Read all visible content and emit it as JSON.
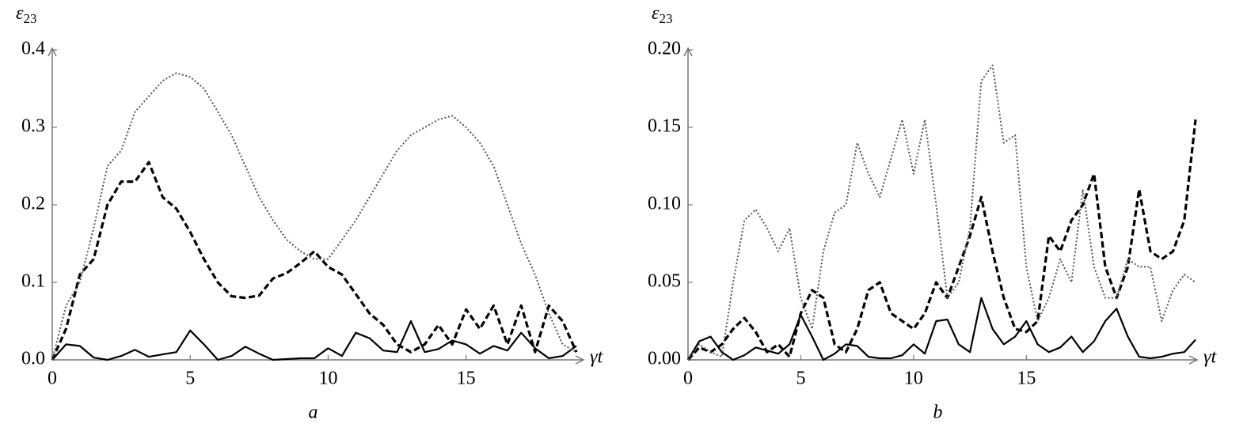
{
  "chart_data": [
    {
      "type": "line",
      "caption": "a",
      "ylabel": "ε",
      "ylabel_subscript": "23",
      "xlabel": "γt",
      "xlim": [
        0,
        19.2
      ],
      "ylim": [
        0,
        0.4
      ],
      "xticks": [
        0,
        5,
        10,
        15
      ],
      "yticks": [
        {
          "value": 0,
          "label": "0.0"
        },
        0.1,
        0.2,
        0.3,
        0.4
      ],
      "x": [
        0,
        0.5,
        1,
        1.5,
        2,
        2.5,
        3,
        3.5,
        4,
        4.5,
        5,
        5.5,
        6,
        6.5,
        7,
        7.5,
        8,
        8.5,
        9,
        9.5,
        10,
        10.5,
        11,
        11.5,
        12,
        12.5,
        13,
        13.5,
        14,
        14.5,
        15,
        15.5,
        16,
        16.5,
        17,
        17.5,
        18,
        18.5,
        19
      ],
      "series": [
        {
          "color": "#000000",
          "dash": "solid",
          "values": [
            0,
            0.02,
            0.018,
            0.003,
            0,
            0.005,
            0.013,
            0.004,
            0.007,
            0.01,
            0.038,
            0.02,
            0,
            0.005,
            0.017,
            0.008,
            0,
            0.001,
            0.002,
            0.002,
            0.015,
            0.005,
            0.035,
            0.028,
            0.012,
            0.01,
            0.05,
            0.01,
            0.014,
            0.025,
            0.02,
            0.008,
            0.018,
            0.012,
            0.035,
            0.015,
            0.002,
            0.005,
            0.018
          ]
        },
        {
          "color": "#000000",
          "dash": "dashed",
          "values": [
            0,
            0.04,
            0.11,
            0.13,
            0.2,
            0.23,
            0.23,
            0.255,
            0.21,
            0.195,
            0.165,
            0.13,
            0.1,
            0.082,
            0.08,
            0.083,
            0.105,
            0.112,
            0.125,
            0.14,
            0.12,
            0.11,
            0.085,
            0.06,
            0.045,
            0.02,
            0.01,
            0.02,
            0.045,
            0.02,
            0.065,
            0.04,
            0.07,
            0.02,
            0.07,
            0.01,
            0.07,
            0.05,
            0.01
          ]
        },
        {
          "color": "#555555",
          "dash": "dotted",
          "values": [
            0,
            0.07,
            0.1,
            0.17,
            0.25,
            0.27,
            0.32,
            0.34,
            0.36,
            0.37,
            0.365,
            0.35,
            0.32,
            0.29,
            0.25,
            0.21,
            0.18,
            0.155,
            0.14,
            0.13,
            0.13,
            0.155,
            0.18,
            0.21,
            0.24,
            0.27,
            0.29,
            0.3,
            0.31,
            0.315,
            0.3,
            0.28,
            0.25,
            0.2,
            0.15,
            0.11,
            0.06,
            0.02,
            0.01
          ]
        }
      ]
    },
    {
      "type": "line",
      "caption": "b",
      "ylabel": "ε",
      "ylabel_subscript": "23",
      "xlabel": "γt",
      "xlim": [
        0,
        22.5
      ],
      "ylim": [
        0,
        0.2
      ],
      "xticks": [
        0,
        5,
        10,
        15
      ],
      "yticks": [
        {
          "value": 0,
          "label": "0.00"
        },
        {
          "value": 0.05,
          "label": "0.05"
        },
        {
          "value": 0.1,
          "label": "0.10"
        },
        {
          "value": 0.15,
          "label": "0.15"
        },
        {
          "value": 0.2,
          "label": "0.20"
        }
      ],
      "x": [
        0,
        0.5,
        1,
        1.5,
        2,
        2.5,
        3,
        3.5,
        4,
        4.5,
        5,
        5.5,
        6,
        6.5,
        7,
        7.5,
        8,
        8.5,
        9,
        9.5,
        10,
        10.5,
        11,
        11.5,
        12,
        12.5,
        13,
        13.5,
        14,
        14.5,
        15,
        15.5,
        16,
        16.5,
        17,
        17.5,
        18,
        18.5,
        19,
        19.5,
        20,
        20.5,
        21,
        21.5,
        22,
        22.5
      ],
      "series": [
        {
          "color": "#000000",
          "dash": "solid",
          "values": [
            0,
            0.012,
            0.015,
            0.005,
            0,
            0.003,
            0.008,
            0.006,
            0.004,
            0.01,
            0.029,
            0.015,
            0,
            0.004,
            0.01,
            0.009,
            0.002,
            0.001,
            0.001,
            0.003,
            0.01,
            0.004,
            0.025,
            0.026,
            0.01,
            0.005,
            0.04,
            0.02,
            0.01,
            0.015,
            0.025,
            0.01,
            0.005,
            0.008,
            0.015,
            0.005,
            0.012,
            0.025,
            0.033,
            0.015,
            0.002,
            0.001,
            0.002,
            0.004,
            0.005,
            0.013
          ]
        },
        {
          "color": "#000000",
          "dash": "dashed",
          "values": [
            0,
            0.008,
            0.005,
            0.01,
            0.02,
            0.027,
            0.018,
            0.005,
            0.01,
            0.002,
            0.03,
            0.045,
            0.04,
            0.01,
            0.005,
            0.02,
            0.045,
            0.05,
            0.03,
            0.025,
            0.02,
            0.03,
            0.05,
            0.04,
            0.06,
            0.08,
            0.105,
            0.07,
            0.04,
            0.02,
            0.018,
            0.025,
            0.08,
            0.07,
            0.09,
            0.1,
            0.12,
            0.06,
            0.04,
            0.06,
            0.11,
            0.07,
            0.065,
            0.07,
            0.09,
            0.155
          ]
        },
        {
          "color": "#555555",
          "dash": "dotted",
          "values": [
            0,
            0.01,
            0.005,
            0.002,
            0.05,
            0.09,
            0.097,
            0.085,
            0.07,
            0.085,
            0.04,
            0.02,
            0.07,
            0.095,
            0.1,
            0.14,
            0.12,
            0.105,
            0.13,
            0.155,
            0.12,
            0.155,
            0.1,
            0.04,
            0.05,
            0.085,
            0.18,
            0.19,
            0.14,
            0.145,
            0.06,
            0.025,
            0.04,
            0.065,
            0.05,
            0.11,
            0.06,
            0.04,
            0.04,
            0.065,
            0.06,
            0.06,
            0.025,
            0.045,
            0.055,
            0.05
          ]
        }
      ]
    }
  ]
}
